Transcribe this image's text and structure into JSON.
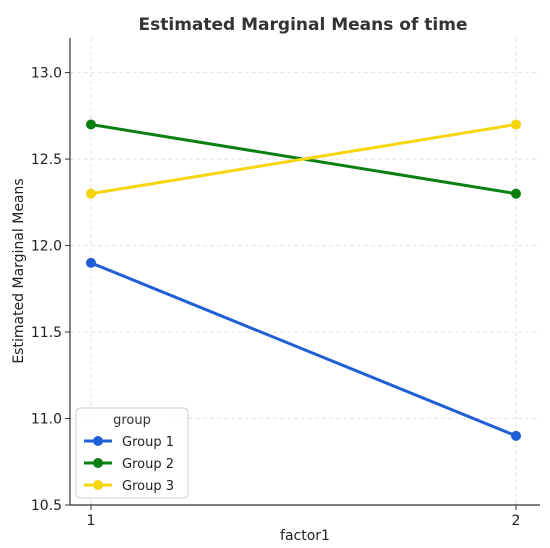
{
  "chart_data": {
    "type": "line",
    "title": "Estimated Marginal Means of time",
    "xlabel": "factor1",
    "ylabel": "Estimated Marginal Means",
    "categories": [
      "1",
      "2"
    ],
    "ylim": [
      10.5,
      13.2
    ],
    "yticks": [
      "10.5",
      "11.0",
      "11.5",
      "12.0",
      "12.5",
      "13.0"
    ],
    "grid": true,
    "legend": {
      "title": "group",
      "placement": "bottom-left"
    },
    "series": [
      {
        "name": "Group 1",
        "values": [
          11.9,
          10.9
        ],
        "color": "#1f5fd6"
      },
      {
        "name": "Group 2",
        "values": [
          12.7,
          12.3
        ],
        "color": "#0b7f14"
      },
      {
        "name": "Group 3",
        "values": [
          12.3,
          12.7
        ],
        "color": "#f5d50c"
      }
    ]
  }
}
